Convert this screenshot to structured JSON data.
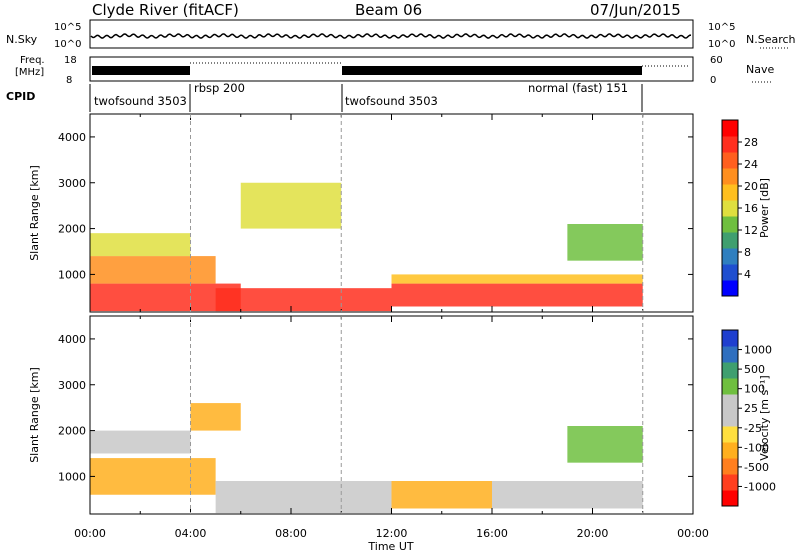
{
  "header": {
    "station": "Clyde River (fitACF)",
    "beam": "Beam 06",
    "date": "07/Jun/2015"
  },
  "noise_panel": {
    "left_label": "N.Sky",
    "right_label": "N.Search",
    "left_ticks": [
      "10^5",
      "10^0"
    ],
    "right_ticks": [
      "10^5",
      "10^0"
    ]
  },
  "freq_panel": {
    "left_label_1": "Freq.",
    "left_label_2": "[MHz]",
    "right_label": "Nave",
    "left_ticks": [
      "18",
      "8"
    ],
    "right_ticks": [
      "60",
      "0"
    ]
  },
  "cpid": {
    "label": "CPID",
    "segments": [
      {
        "label": "twofsound 3503",
        "start_hour": 0
      },
      {
        "label": "rbsp 200",
        "start_hour": 4
      },
      {
        "label": "twofsound 3503",
        "start_hour": 10
      },
      {
        "label": "normal (fast) 151",
        "start_hour": 22
      }
    ]
  },
  "power_colorbar": {
    "label": "Power [dB]",
    "ticks": [
      "28",
      "24",
      "20",
      "16",
      "12",
      "8",
      "4"
    ],
    "colors": [
      "#0000ff",
      "#1f4fcf",
      "#2f7fbf",
      "#3f9f6f",
      "#6fbf3f",
      "#dfdf3f",
      "#ffbf1f",
      "#ff8f1f",
      "#ff5f1f",
      "#ff2f1f",
      "#ff0000"
    ]
  },
  "velocity_colorbar": {
    "label": "Velocity [m s⁻¹]",
    "ticks": [
      "1000",
      "500",
      "100",
      "25",
      "-25",
      "-100",
      "-500",
      "-1000"
    ],
    "colors": [
      "#ff0000",
      "#ff3f1f",
      "#ff7f1f",
      "#ffaf1f",
      "#ffdf3f",
      "#c8c8c8",
      "#c8c8c8",
      "#6fbf3f",
      "#3f9f6f",
      "#2f6fbf",
      "#1f3fcf"
    ]
  },
  "chart_data": {
    "type": "heatmap",
    "x_label": "Time UT",
    "y_label": "Slant Range [km]",
    "x_ticks": [
      "00:00",
      "04:00",
      "08:00",
      "12:00",
      "16:00",
      "20:00",
      "00:00"
    ],
    "x_range_hours": [
      0,
      24
    ],
    "y_ticks": [
      1000,
      2000,
      3000,
      4000
    ],
    "y_range_km": [
      180,
      4500
    ],
    "mode_change_hours": [
      4,
      10,
      22
    ],
    "power_regions": [
      {
        "t0": 0,
        "t1": 6,
        "r0": 200,
        "r1": 800,
        "db": 26
      },
      {
        "t0": 0,
        "t1": 5,
        "r0": 800,
        "r1": 1400,
        "db": 20
      },
      {
        "t0": 0,
        "t1": 4,
        "r0": 1400,
        "r1": 1900,
        "db": 14
      },
      {
        "t0": 5,
        "t1": 12,
        "r0": 200,
        "r1": 700,
        "db": 28
      },
      {
        "t0": 12,
        "t1": 22,
        "r0": 300,
        "r1": 800,
        "db": 27
      },
      {
        "t0": 12,
        "t1": 22,
        "r0": 800,
        "r1": 1000,
        "db": 18
      },
      {
        "t0": 19,
        "t1": 22,
        "r0": 1300,
        "r1": 2100,
        "db": 12
      },
      {
        "t0": 6,
        "t1": 10,
        "r0": 2000,
        "r1": 3000,
        "db": 16
      }
    ],
    "velocity_regions": [
      {
        "t0": 0,
        "t1": 4,
        "r0": 1500,
        "r1": 2000,
        "v": 0
      },
      {
        "t0": 0,
        "t1": 5,
        "r0": 600,
        "r1": 1400,
        "v": -150
      },
      {
        "t0": 5,
        "t1": 12,
        "r0": 200,
        "r1": 900,
        "v": 0
      },
      {
        "t0": 12,
        "t1": 16,
        "r0": 300,
        "r1": 900,
        "v": -200
      },
      {
        "t0": 16,
        "t1": 22,
        "r0": 300,
        "r1": 900,
        "v": 0
      },
      {
        "t0": 19,
        "t1": 22,
        "r0": 1300,
        "r1": 2100,
        "v": 300
      },
      {
        "t0": 4,
        "t1": 6,
        "r0": 2000,
        "r1": 2600,
        "v": -400
      }
    ]
  }
}
